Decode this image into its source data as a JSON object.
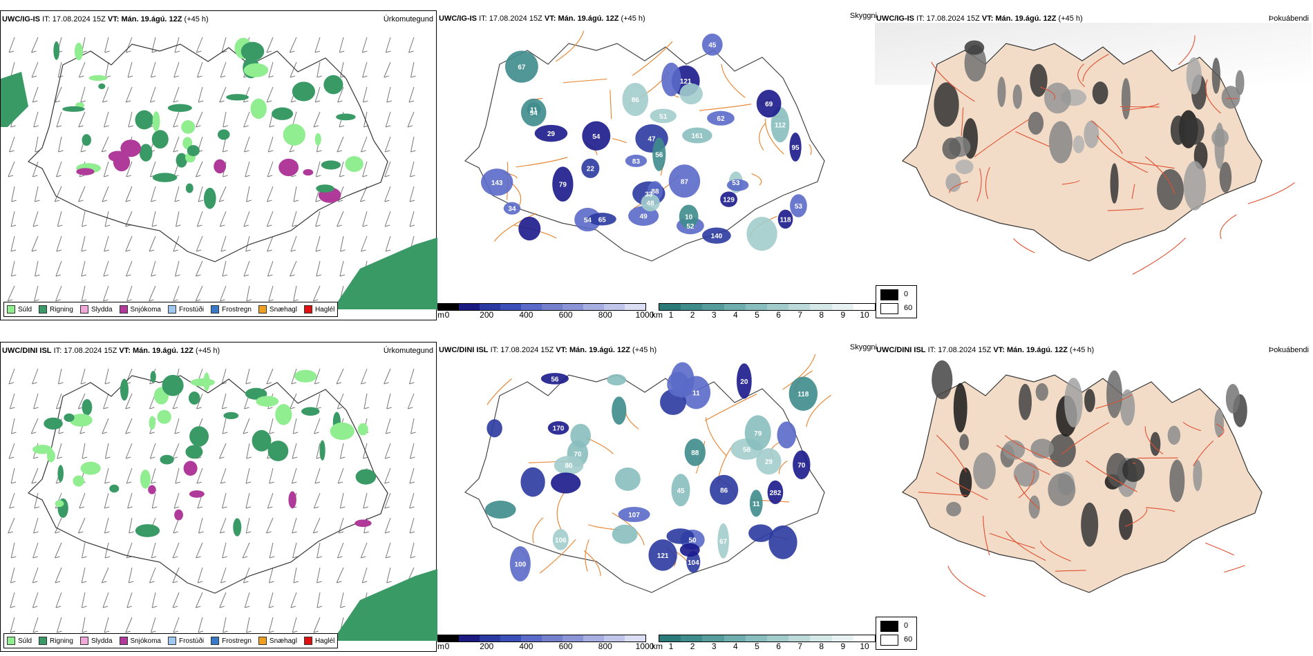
{
  "rows": [
    {
      "model": "UWC/IG-IS",
      "it_label": "IT:",
      "it_value": "17.08.2024 15Z",
      "vt_label": "VT:",
      "vt_value": "Mán. 19.ágú. 12Z",
      "lead": "(+45 h)",
      "precip_labels": [
        "79",
        "53",
        "33",
        "22",
        "54",
        "52",
        "45",
        "51",
        "83",
        "49",
        "47",
        "34",
        "62",
        "54",
        "88",
        "56",
        "143",
        "112",
        "95",
        "140",
        "65",
        "54",
        "48",
        "69",
        "67",
        "86",
        "87",
        "118",
        "161",
        "121",
        "129",
        "29",
        "53",
        "10",
        "11"
      ]
    },
    {
      "model": "UWC/DINI ISL",
      "it_label": "IT:",
      "it_value": "17.08.2024 15Z",
      "vt_label": "VT:",
      "vt_value": "Mán. 19.ágú. 12Z",
      "lead": "(+45 h)",
      "precip_labels": [
        "86",
        "45",
        "100",
        "70",
        "50",
        "56",
        "80",
        "58",
        "20",
        "67",
        "170",
        "118",
        "11",
        "282",
        "79",
        "104",
        "70",
        "107",
        "106",
        "121",
        "29",
        "88",
        "11"
      ]
    }
  ],
  "panel_titles": {
    "precip_type": "Úrkomutegund",
    "cloud": "Skyggni",
    "fog": "Þokuábendi"
  },
  "legend": [
    {
      "label": "Súld",
      "color": "#90ee90"
    },
    {
      "label": "Rigning",
      "color": "#3a9a66"
    },
    {
      "label": "Slydda",
      "color": "#f0a8d8"
    },
    {
      "label": "Snjókoma",
      "color": "#b03a9a"
    },
    {
      "label": "Frostúði",
      "color": "#9ec8f0"
    },
    {
      "label": "Frostregn",
      "color": "#3a78c8"
    },
    {
      "label": "Snæhagl",
      "color": "#f0a020"
    },
    {
      "label": "Haglél",
      "color": "#e01010"
    }
  ],
  "colorbars": {
    "height": {
      "unit": "m",
      "ticks": [
        "0",
        "200",
        "400",
        "600",
        "800",
        "1000"
      ],
      "colors": [
        "#000000",
        "#1a1a80",
        "#2b3aa0",
        "#3a50b8",
        "#5a6ac8",
        "#7480cc",
        "#8c94d8",
        "#a6aee2",
        "#c0c6ea",
        "#dcdff4"
      ]
    },
    "visibility": {
      "unit": "km",
      "ticks": [
        "1",
        "2",
        "3",
        "4",
        "5",
        "6",
        "7",
        "8",
        "9",
        "10"
      ],
      "colors": [
        "#2a7a7a",
        "#3f8c8c",
        "#569c9c",
        "#6eaeae",
        "#88bebe",
        "#a2cccc",
        "#bcdada",
        "#d4e8e8",
        "#e8f2f2",
        "#ffffff"
      ]
    }
  },
  "fog_scale": {
    "ticks": [
      "0",
      "60"
    ],
    "colors": [
      "#000000",
      "#ffffff"
    ]
  }
}
